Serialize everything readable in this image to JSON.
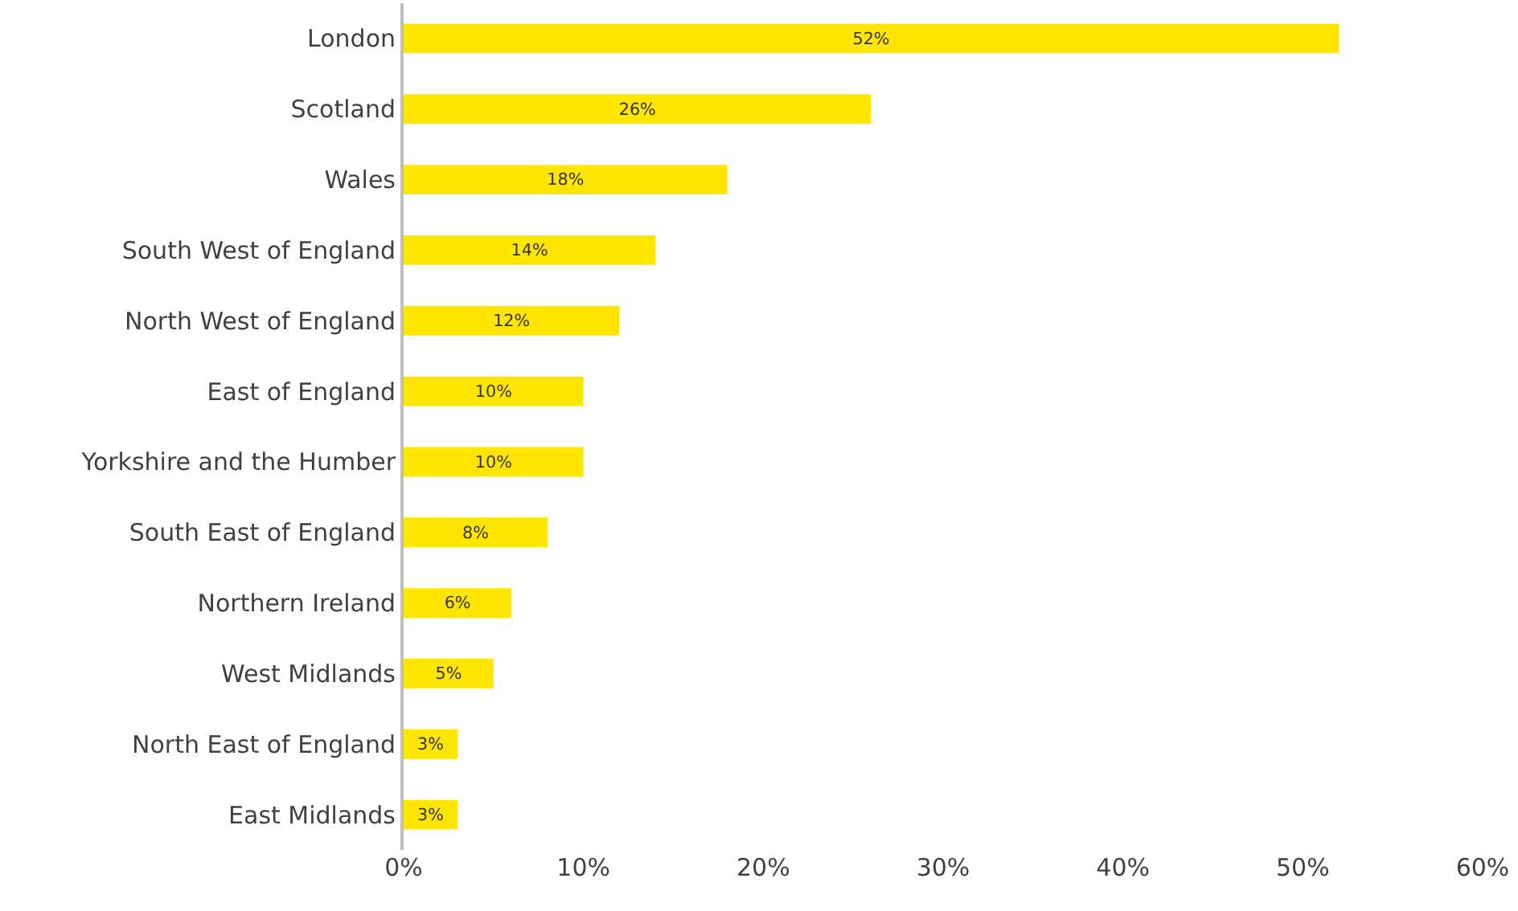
{
  "chart_data": {
    "type": "bar",
    "orientation": "horizontal",
    "categories": [
      "London",
      "Scotland",
      "Wales",
      "South West of England",
      "North West of England",
      "East of England",
      "Yorkshire and the Humber",
      "South East of England",
      "Northern Ireland",
      "West Midlands",
      "North East of England",
      "East Midlands"
    ],
    "values": [
      52,
      26,
      18,
      14,
      12,
      10,
      10,
      8,
      6,
      5,
      3,
      3
    ],
    "value_labels": [
      "52%",
      "26%",
      "18%",
      "14%",
      "12%",
      "10%",
      "10%",
      "8%",
      "6%",
      "5%",
      "3%",
      "3%"
    ],
    "color": "#ffe600",
    "xlim": [
      0,
      60
    ],
    "xticks": [
      {
        "value": 0,
        "label": "0%"
      },
      {
        "value": 10,
        "label": "10%"
      },
      {
        "value": 20,
        "label": "20%"
      },
      {
        "value": 30,
        "label": "30%"
      },
      {
        "value": 40,
        "label": "40%"
      },
      {
        "value": 50,
        "label": "50%"
      },
      {
        "value": 60,
        "label": "60%"
      }
    ],
    "legend": false
  }
}
